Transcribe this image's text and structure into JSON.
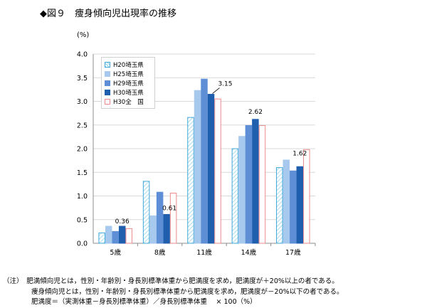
{
  "title": "◆図９　痩身傾向児出現率の推移",
  "unit_label": "(%)",
  "notes": [
    "（注）　肥満傾向児とは，性別・年齢別・身長別標準体重から肥満度を求め，肥満度が＋20%以上の者である。",
    "痩身傾向児とは，性別・年齢別・身長別標準体重から肥満度を求め，肥満度が－20%以下の者である。",
    "肥満度＝（実測体重－身長別標準体重）／身長別標準体重　 × 100（%）"
  ],
  "chart_data": {
    "type": "bar",
    "categories": [
      "5歳",
      "8歳",
      "11歳",
      "14歳",
      "17歳"
    ],
    "ylim": [
      0,
      4.0
    ],
    "yticks": [
      "0.0",
      "0.5",
      "1.0",
      "1.5",
      "2.0",
      "2.5",
      "3.0",
      "3.5",
      "4.0"
    ],
    "ytick_values": [
      0,
      0.5,
      1.0,
      1.5,
      2.0,
      2.5,
      3.0,
      3.5,
      4.0
    ],
    "grid": true,
    "legend_position": "top-left",
    "series": [
      {
        "name": "H20埼玉県",
        "values": [
          0.22,
          1.31,
          2.66,
          2.0,
          1.6
        ],
        "fill": "#ffffff",
        "stroke": "#3fa8d8",
        "hatch": true
      },
      {
        "name": "H25埼玉県",
        "values": [
          0.36,
          0.58,
          3.23,
          2.26,
          1.76
        ],
        "fill": "#a7c9ee",
        "stroke": "#a7c9ee",
        "hatch": false
      },
      {
        "name": "H29埼玉県",
        "values": [
          0.25,
          1.08,
          3.47,
          2.49,
          1.53
        ],
        "fill": "#5e8fd6",
        "stroke": "#5e8fd6",
        "hatch": false
      },
      {
        "name": "H30埼玉県",
        "values": [
          0.36,
          0.61,
          3.15,
          2.62,
          1.62
        ],
        "fill": "#1f5fae",
        "stroke": "#1f5fae",
        "hatch": false
      },
      {
        "name": "H30全　国",
        "values": [
          0.31,
          1.06,
          3.05,
          2.49,
          1.98
        ],
        "fill": "#ffffff",
        "stroke": "#ee8a8a",
        "hatch": false
      }
    ],
    "data_labels": [
      {
        "category_index": 0,
        "series_index": 3,
        "text": "0.36"
      },
      {
        "category_index": 1,
        "series_index": 3,
        "text": "0.61"
      },
      {
        "category_index": 2,
        "series_index": 3,
        "text": "3.15"
      },
      {
        "category_index": 3,
        "series_index": 3,
        "text": "2.62"
      },
      {
        "category_index": 4,
        "series_index": 3,
        "text": "1.62"
      }
    ]
  }
}
